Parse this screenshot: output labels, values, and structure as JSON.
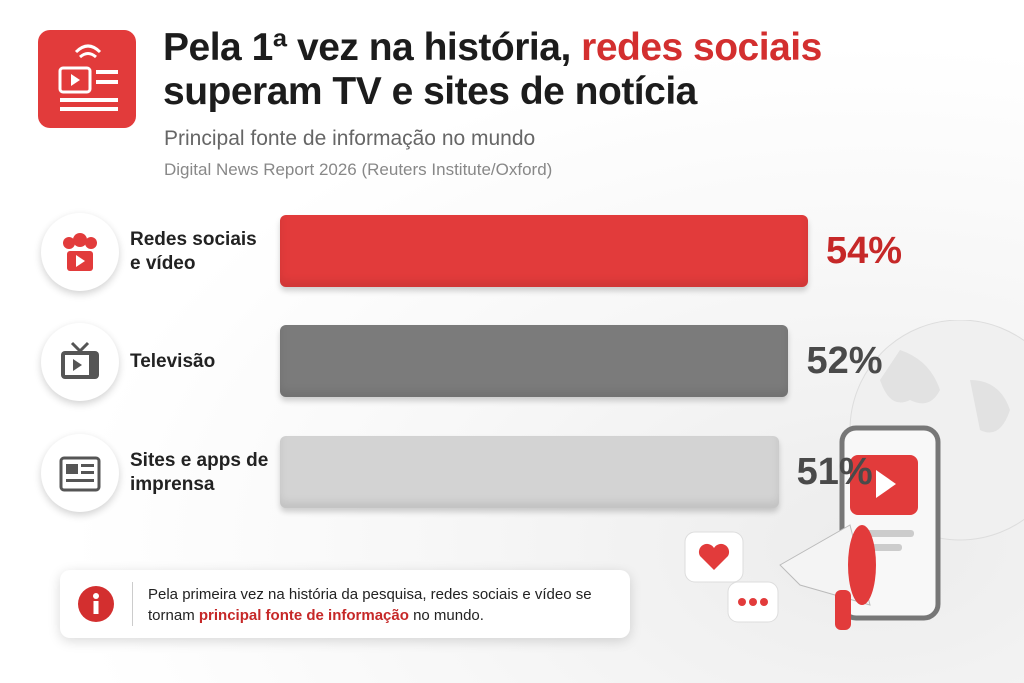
{
  "chart_data": {
    "type": "bar",
    "orientation": "horizontal",
    "title": [
      "Pela 1ª vez na história,",
      "redes sociais",
      "superam TV e sites de notícia"
    ],
    "subtitle": "Principal fonte de informação no mundo",
    "source": "Digital News Report 2026 (Reuters Institute/Oxford)",
    "categories": [
      "Redes sociais e vídeo",
      "Televisão",
      "Sites e apps de imprensa"
    ],
    "values": [
      54,
      52,
      51
    ],
    "value_labels": [
      "54%",
      "52%",
      "51%"
    ],
    "colors": [
      "#e23b3b",
      "#7b7b7b",
      "#d3d3d3"
    ],
    "label_colors": [
      "#c62828",
      "#4a4a4a",
      "#4a4a4a"
    ],
    "note": [
      "Pela primeira vez na história da pesquisa, redes sociais e vídeo se tornam",
      "principal fonte de informação",
      "no mundo."
    ]
  }
}
